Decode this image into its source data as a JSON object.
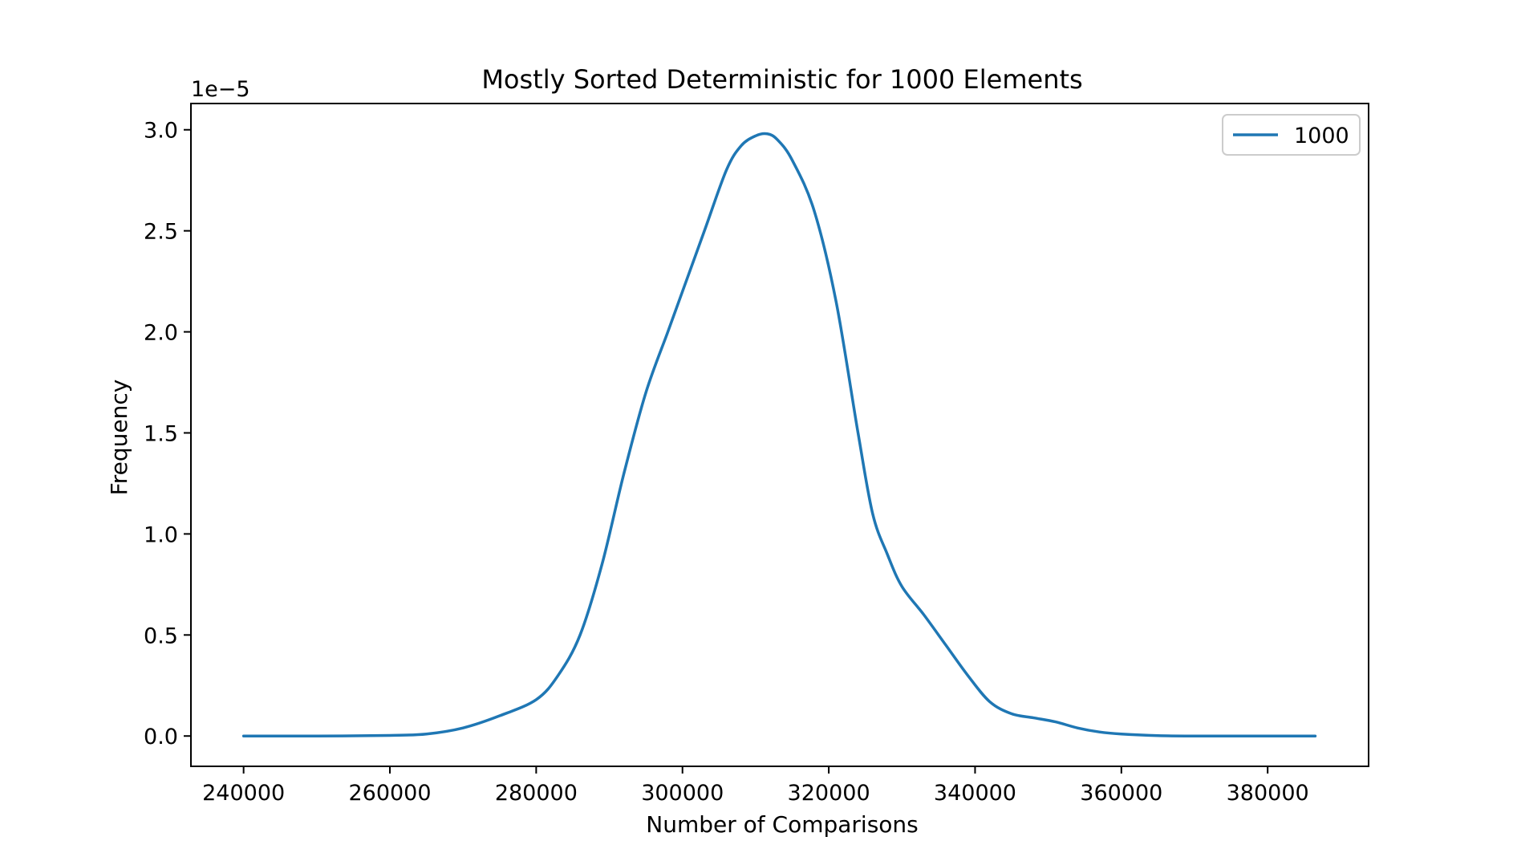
{
  "chart_data": {
    "type": "line",
    "title": "Mostly Sorted Deterministic for 1000 Elements",
    "xlabel": "Number of Comparisons",
    "ylabel": "Frequency",
    "y_offset_label": "1e−5",
    "xlim": [
      232800,
      393800
    ],
    "ylim": [
      -0.15,
      3.13
    ],
    "y_scale_note": "values x 1e-5",
    "x_ticks": [
      240000,
      260000,
      280000,
      300000,
      320000,
      340000,
      360000,
      380000
    ],
    "x_tick_labels": [
      "240000",
      "260000",
      "280000",
      "300000",
      "320000",
      "340000",
      "360000",
      "380000"
    ],
    "y_ticks": [
      0.0,
      0.5,
      1.0,
      1.5,
      2.0,
      2.5,
      3.0
    ],
    "y_tick_labels": [
      "0.0",
      "0.5",
      "1.0",
      "1.5",
      "2.0",
      "2.5",
      "3.0"
    ],
    "grid": false,
    "legend_position": "upper right",
    "series": [
      {
        "name": "1000",
        "color": "#1f77b4",
        "x": [
          240000,
          250000,
          260000,
          265000,
          270000,
          275000,
          280000,
          283000,
          286000,
          289000,
          292000,
          295000,
          298000,
          300000,
          303000,
          306000,
          308000,
          310000,
          311600,
          313000,
          315000,
          318000,
          321000,
          324000,
          326000,
          328000,
          330000,
          333000,
          336000,
          339000,
          342000,
          345000,
          348000,
          351000,
          354000,
          357000,
          360000,
          365000,
          370000,
          380000,
          386500
        ],
        "y": [
          0.0,
          0.0,
          0.003,
          0.01,
          0.04,
          0.1,
          0.18,
          0.3,
          0.5,
          0.85,
          1.3,
          1.7,
          2.0,
          2.2,
          2.5,
          2.8,
          2.92,
          2.97,
          2.98,
          2.95,
          2.85,
          2.6,
          2.15,
          1.5,
          1.1,
          0.9,
          0.74,
          0.6,
          0.45,
          0.3,
          0.17,
          0.11,
          0.09,
          0.07,
          0.04,
          0.02,
          0.01,
          0.002,
          0.0,
          0.0,
          0.0
        ]
      }
    ]
  }
}
